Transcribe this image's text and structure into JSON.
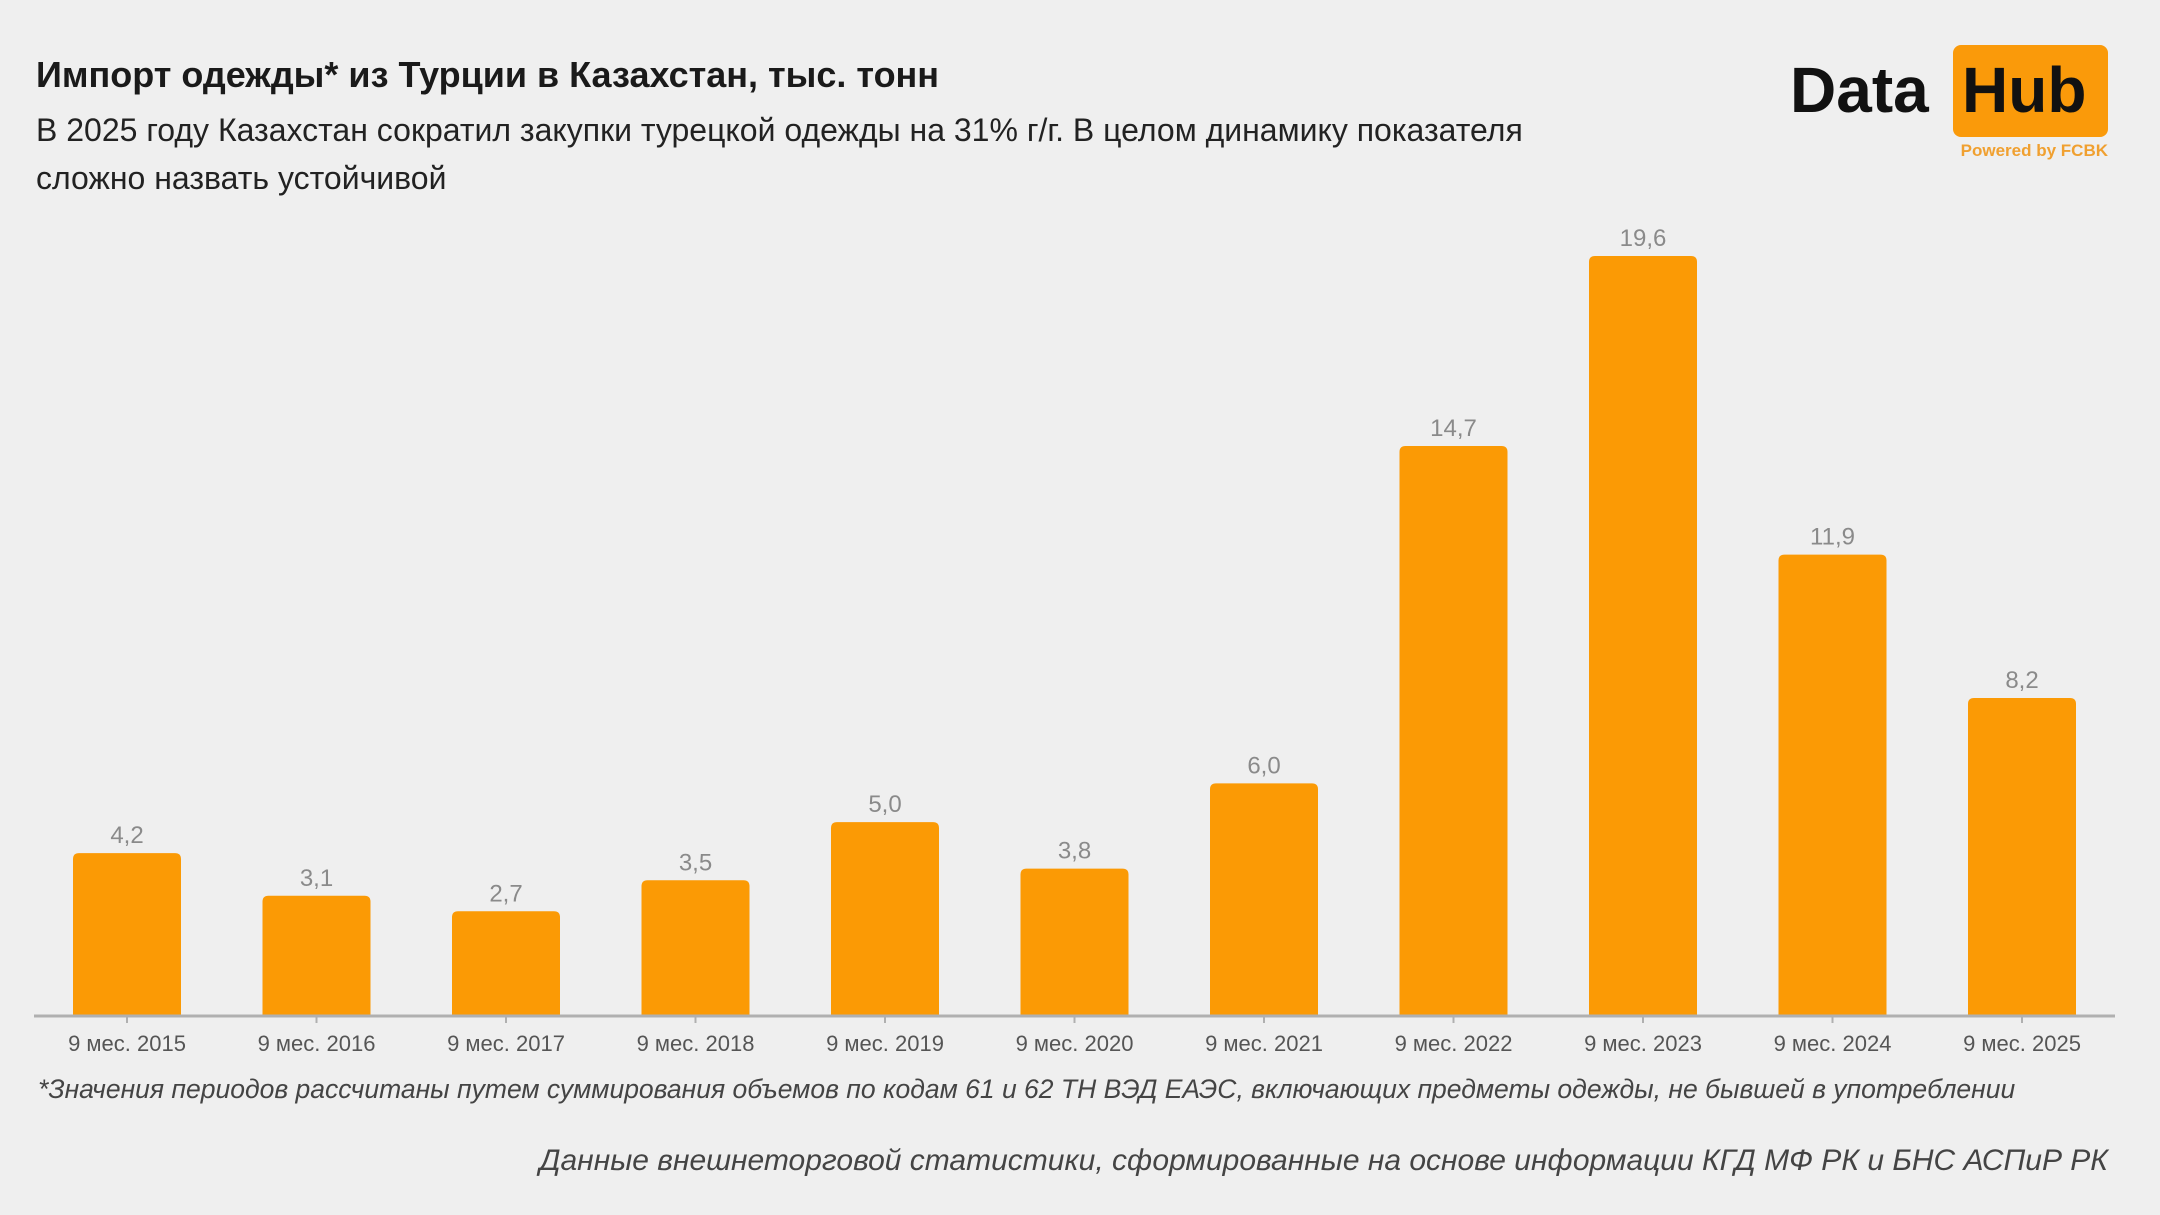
{
  "header": {
    "title": "Импорт одежды* из Турции в Казахстан, тыс. тонн",
    "subtitle": "В 2025 году Казахстан сократил закупки турецкой одежды на 31% г/г. В целом динамику показателя сложно назвать устойчивой"
  },
  "logo": {
    "word1": "Data",
    "word2": "Hub",
    "tagline": "Powered by FCBK"
  },
  "colors": {
    "bar": "#fb9a05",
    "background": "#efefef",
    "axis": "#b0b0b0"
  },
  "chart_data": {
    "type": "bar",
    "categories": [
      "9 мес. 2015",
      "9 мес. 2016",
      "9 мес. 2017",
      "9 мес. 2018",
      "9 мес. 2019",
      "9 мес. 2020",
      "9 мес. 2021",
      "9 мес. 2022",
      "9 мес. 2023",
      "9 мес. 2024",
      "9 мес. 2025"
    ],
    "values": [
      4.2,
      3.1,
      2.7,
      3.5,
      5.0,
      3.8,
      6.0,
      14.7,
      19.6,
      11.9,
      8.2
    ],
    "data_labels": [
      "4,2",
      "3,1",
      "2,7",
      "3,5",
      "5,0",
      "3,8",
      "6,0",
      "14,7",
      "19,6",
      "11,9",
      "8,2"
    ],
    "ylim": [
      0,
      19.6
    ],
    "grid": false
  },
  "footer": {
    "footnote": "*Значения периодов рассчитаны путем суммирования объемов по кодам 61 и 62 ТН ВЭД ЕАЭС, включающих предметы одежды, не бывшей в употреблении",
    "source": "Данные внешнеторговой статистики, сформированные на основе информации КГД МФ РК и БНС АСПиР РК"
  }
}
